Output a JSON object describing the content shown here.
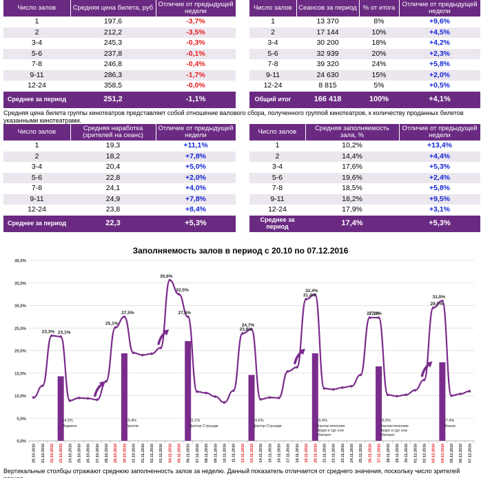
{
  "table1": {
    "headers": [
      "Число залов",
      "Средняя цена билета, руб",
      "Отличие от предыдущей недели"
    ],
    "rows": [
      [
        "1",
        "197,6",
        "-3,7%"
      ],
      [
        "2",
        "212,2",
        "-3,5%"
      ],
      [
        "3-4",
        "245,3",
        "-0,3%"
      ],
      [
        "5-6",
        "237,8",
        "-0,1%"
      ],
      [
        "7-8",
        "246,8",
        "-0,4%"
      ],
      [
        "9-11",
        "286,3",
        "-1,7%"
      ],
      [
        "12-24",
        "358,5",
        "-0,0%"
      ]
    ],
    "footer": [
      "Среднее за период",
      "251,2",
      "-1,1%"
    ]
  },
  "table2": {
    "headers": [
      "Число залов",
      "Сеансов за период",
      "% от итога",
      "Отличие от предыдущей недели"
    ],
    "rows": [
      [
        "1",
        "13 370",
        "8%",
        "+9,6%"
      ],
      [
        "2",
        "17 144",
        "10%",
        "+4,5%"
      ],
      [
        "3-4",
        "30 200",
        "18%",
        "+4,2%"
      ],
      [
        "5-6",
        "32 939",
        "20%",
        "+2,3%"
      ],
      [
        "7-8",
        "39 320",
        "24%",
        "+5,8%"
      ],
      [
        "9-11",
        "24 630",
        "15%",
        "+2,0%"
      ],
      [
        "12-24",
        "8 815",
        "5%",
        "+0,5%"
      ]
    ],
    "footer": [
      "Общий итог",
      "166 418",
      "100%",
      "+4,1%"
    ]
  },
  "note1": "Средняя цена билета группы кинотеатров представляет собой отношение валового сбора, полученного группой кинотеатров, к количеству проданных билетов указанными кинотеатрами.",
  "table3": {
    "headers": [
      "Число залов",
      "Средняя наработка (зрителей на сеанс)",
      "Отличие от предыдущей недели"
    ],
    "rows": [
      [
        "1",
        "19,3",
        "+11,1%"
      ],
      [
        "2",
        "18,2",
        "+7,8%"
      ],
      [
        "3-4",
        "20,4",
        "+5,0%"
      ],
      [
        "5-6",
        "22,8",
        "+2,0%"
      ],
      [
        "7-8",
        "24,1",
        "+4,0%"
      ],
      [
        "9-11",
        "24,9",
        "+7,8%"
      ],
      [
        "12-24",
        "23,8",
        "+8,4%"
      ]
    ],
    "footer": [
      "Среднее за период",
      "22,3",
      "+5,3%"
    ]
  },
  "table4": {
    "headers": [
      "Число залов",
      "Средняя заполняемость зала, %",
      "Отличие от предыдущей недели"
    ],
    "rows": [
      [
        "1",
        "10,2%",
        "+13,4%"
      ],
      [
        "2",
        "14,4%",
        "+4,4%"
      ],
      [
        "3-4",
        "17,6%",
        "+5,3%"
      ],
      [
        "5-6",
        "19,6%",
        "+2,4%"
      ],
      [
        "7-8",
        "18,5%",
        "+5,8%"
      ],
      [
        "9-11",
        "18,2%",
        "+9,5%"
      ],
      [
        "12-24",
        "17,9%",
        "+3,1%"
      ]
    ],
    "footer": [
      "Среднее за период",
      "17,4%",
      "+5,3%"
    ]
  },
  "chart_data": {
    "type": "line",
    "title": "Заполняемость залов в период с 20.10 по 07.12.2016",
    "ylim": [
      0,
      40
    ],
    "yticks": [
      "0,0%",
      "5,0%",
      "10,0%",
      "15,0%",
      "20,0%",
      "25,0%",
      "30,0%",
      "35,0%",
      "40,0%"
    ],
    "x": [
      "20.10.2016",
      "21.10.2016",
      "22.10.2016",
      "23.10.2016",
      "24.10.2016",
      "25.10.2016",
      "26.10.2016",
      "27.10.2016",
      "28.10.2016",
      "29.10.2016",
      "30.10.2016",
      "31.10.2016",
      "01.11.2016",
      "02.11.2016",
      "03.11.2016",
      "04.11.2016",
      "05.11.2016",
      "06.11.2016",
      "07.11.2016",
      "08.11.2016",
      "09.11.2016",
      "10.11.2016",
      "11.11.2016",
      "12.11.2016",
      "13.11.2016",
      "14.11.2016",
      "15.11.2016",
      "16.11.2016",
      "17.11.2016",
      "18.11.2016",
      "19.11.2016",
      "20.11.2016",
      "21.11.2016",
      "22.11.2016",
      "23.11.2016",
      "24.11.2016",
      "25.11.2016",
      "26.11.2016",
      "27.11.2016",
      "28.11.2016",
      "29.11.2016",
      "30.11.2016",
      "01.12.2016",
      "02.12.2016",
      "03.12.2016",
      "04.12.2016",
      "05.12.2016",
      "06.12.2016",
      "07.12.2016"
    ],
    "weekend_indices": [
      2,
      3,
      9,
      10,
      15,
      16,
      23,
      24,
      30,
      31,
      37,
      38,
      44,
      45
    ],
    "series": [
      {
        "name": "Заполняемость",
        "values": [
          9.6,
          12.2,
          23.3,
          23.1,
          8.9,
          9.5,
          9.4,
          9.1,
          13.2,
          25.1,
          27.5,
          19.5,
          19.0,
          19.3,
          20.6,
          35.6,
          32.5,
          27.5,
          10.9,
          10.6,
          9.8,
          8.5,
          11.1,
          23.8,
          24.7,
          9.2,
          9.6,
          9.5,
          15.4,
          16.3,
          31.4,
          32.4,
          11.6,
          11.4,
          11.8,
          12.1,
          14.6,
          27.3,
          27.3,
          10.2,
          9.9,
          10.2,
          11.2,
          13.5,
          29.5,
          31.0,
          10.0,
          10.4,
          11.0
        ]
      }
    ],
    "labels": [
      {
        "index": 2,
        "text": "23,3%"
      },
      {
        "index": 3,
        "text": "23,1%"
      },
      {
        "index": 9,
        "text": "25,1%"
      },
      {
        "index": 10,
        "text": "27,5%"
      },
      {
        "index": 15,
        "text": "35,6%"
      },
      {
        "index": 16,
        "text": "32,5%"
      },
      {
        "index": 17,
        "text": "27,5%"
      },
      {
        "index": 23,
        "text": "23,8%"
      },
      {
        "index": 24,
        "text": "24,7%"
      },
      {
        "index": 30,
        "text": "31,4%"
      },
      {
        "index": 31,
        "text": "32,4%"
      },
      {
        "index": 37,
        "text": "27,3%"
      },
      {
        "index": 38,
        "text": "27,3%"
      },
      {
        "index": 44,
        "text": "29,5%"
      },
      {
        "index": 45,
        "text": "31,0%"
      }
    ],
    "weekly_bars": [
      {
        "index": 3,
        "value": 14.3,
        "label": "14,3%",
        "film": "Ледокол"
      },
      {
        "index": 10,
        "value": 19.4,
        "label": "19,4%",
        "film": "Тролли"
      },
      {
        "index": 17,
        "value": 22.1,
        "label": "22,1%",
        "film": "Доктор Стрэндж"
      },
      {
        "index": 24,
        "value": 14.6,
        "label": "14,6%",
        "film": "Доктор Стрэндж"
      },
      {
        "index": 31,
        "value": 19.4,
        "label": "19,4%",
        "film": "Фантастические твари и где они обитают"
      },
      {
        "index": 38,
        "value": 16.5,
        "label": "16,5%",
        "film": "Фантастические твари и где они обитают"
      },
      {
        "index": 45,
        "value": 17.4,
        "label": "17,4%",
        "film": "Моана"
      }
    ],
    "trend_arrows": [
      7,
      14,
      29,
      43
    ],
    "colors": {
      "line": "#7a2c8c",
      "bar": "#7a2c8c",
      "weekend": "#e31b1b",
      "arrow": "#7a2c8c"
    }
  },
  "note2": "Вертикальные столбцы отражают среднюю заполненность залов за неделю. Данный показатель отличается от среднего значения, поскольку число зрителей разное."
}
